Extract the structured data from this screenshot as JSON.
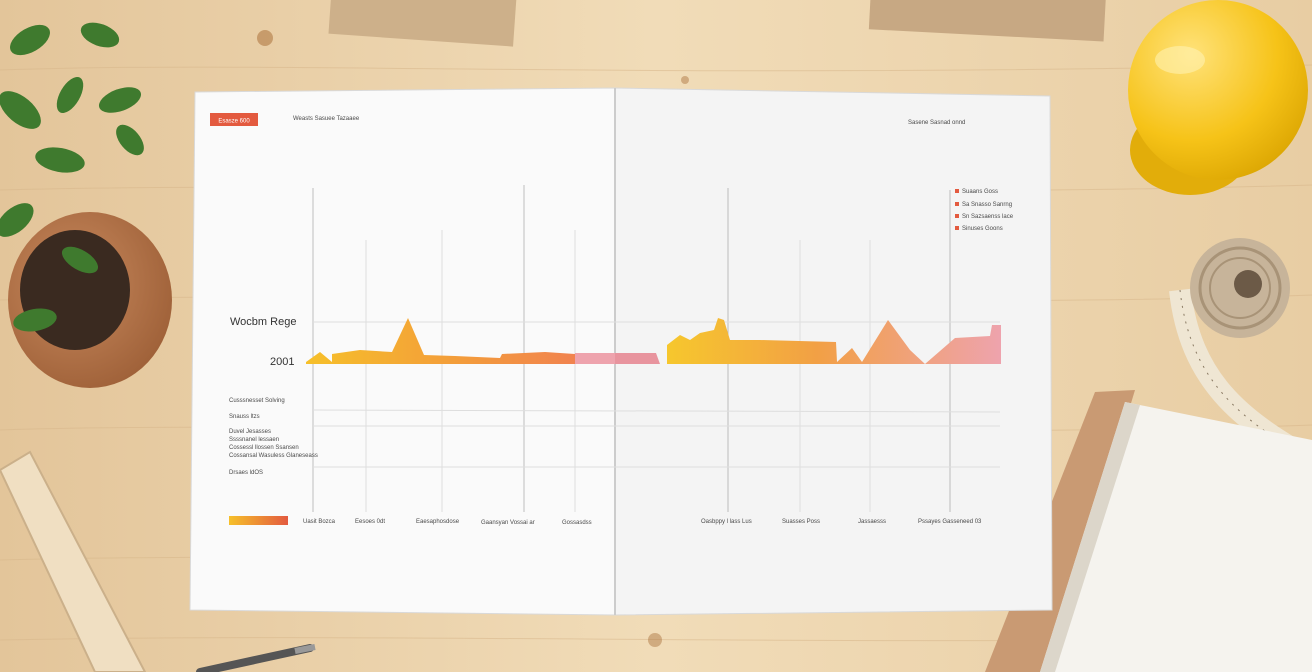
{
  "report": {
    "badge": "Esasze 600",
    "header_left": "Weasts Sasuee Tazaaee",
    "header_right": "Sasene Sasnad onnd",
    "title": "Wocbm Rege",
    "year": "2001",
    "side_labels": [
      "Cusssnesset Solving",
      "Snauss ltzs",
      "Duvel Jesasses",
      "Ssssnanel lessaen",
      "Cossessl llossen Ssansen",
      "Cossansal Wasuless Glaneseass",
      "Drsaes ldOS"
    ],
    "legend": [
      "Suaans Goss",
      "Sa Snasso Sanrng",
      "Sn Sazsaenss lace",
      "Sinuses Goons"
    ],
    "x_labels_left": [
      "Uasit Bozca",
      "Eesoes 0dt",
      "Eaesaphosdose",
      "Gaansyan Vossai ar",
      "Gossasdss"
    ],
    "x_labels_right": [
      "Oasbppy l lass Lus",
      "Suasses Poss",
      "Jassaesss",
      "Pssayes Gasseneed 03"
    ]
  },
  "colors": {
    "accent_red": "#e35a3f",
    "orange": "#f39c3b",
    "yellow": "#f6c02a",
    "pink": "#eea3ad",
    "wood": "#e9cfa6",
    "paper": "#f8f8f8"
  },
  "objects": [
    "plant-pot",
    "hard-hat",
    "tape-measure",
    "notebook",
    "pencil",
    "wood-plank"
  ]
}
